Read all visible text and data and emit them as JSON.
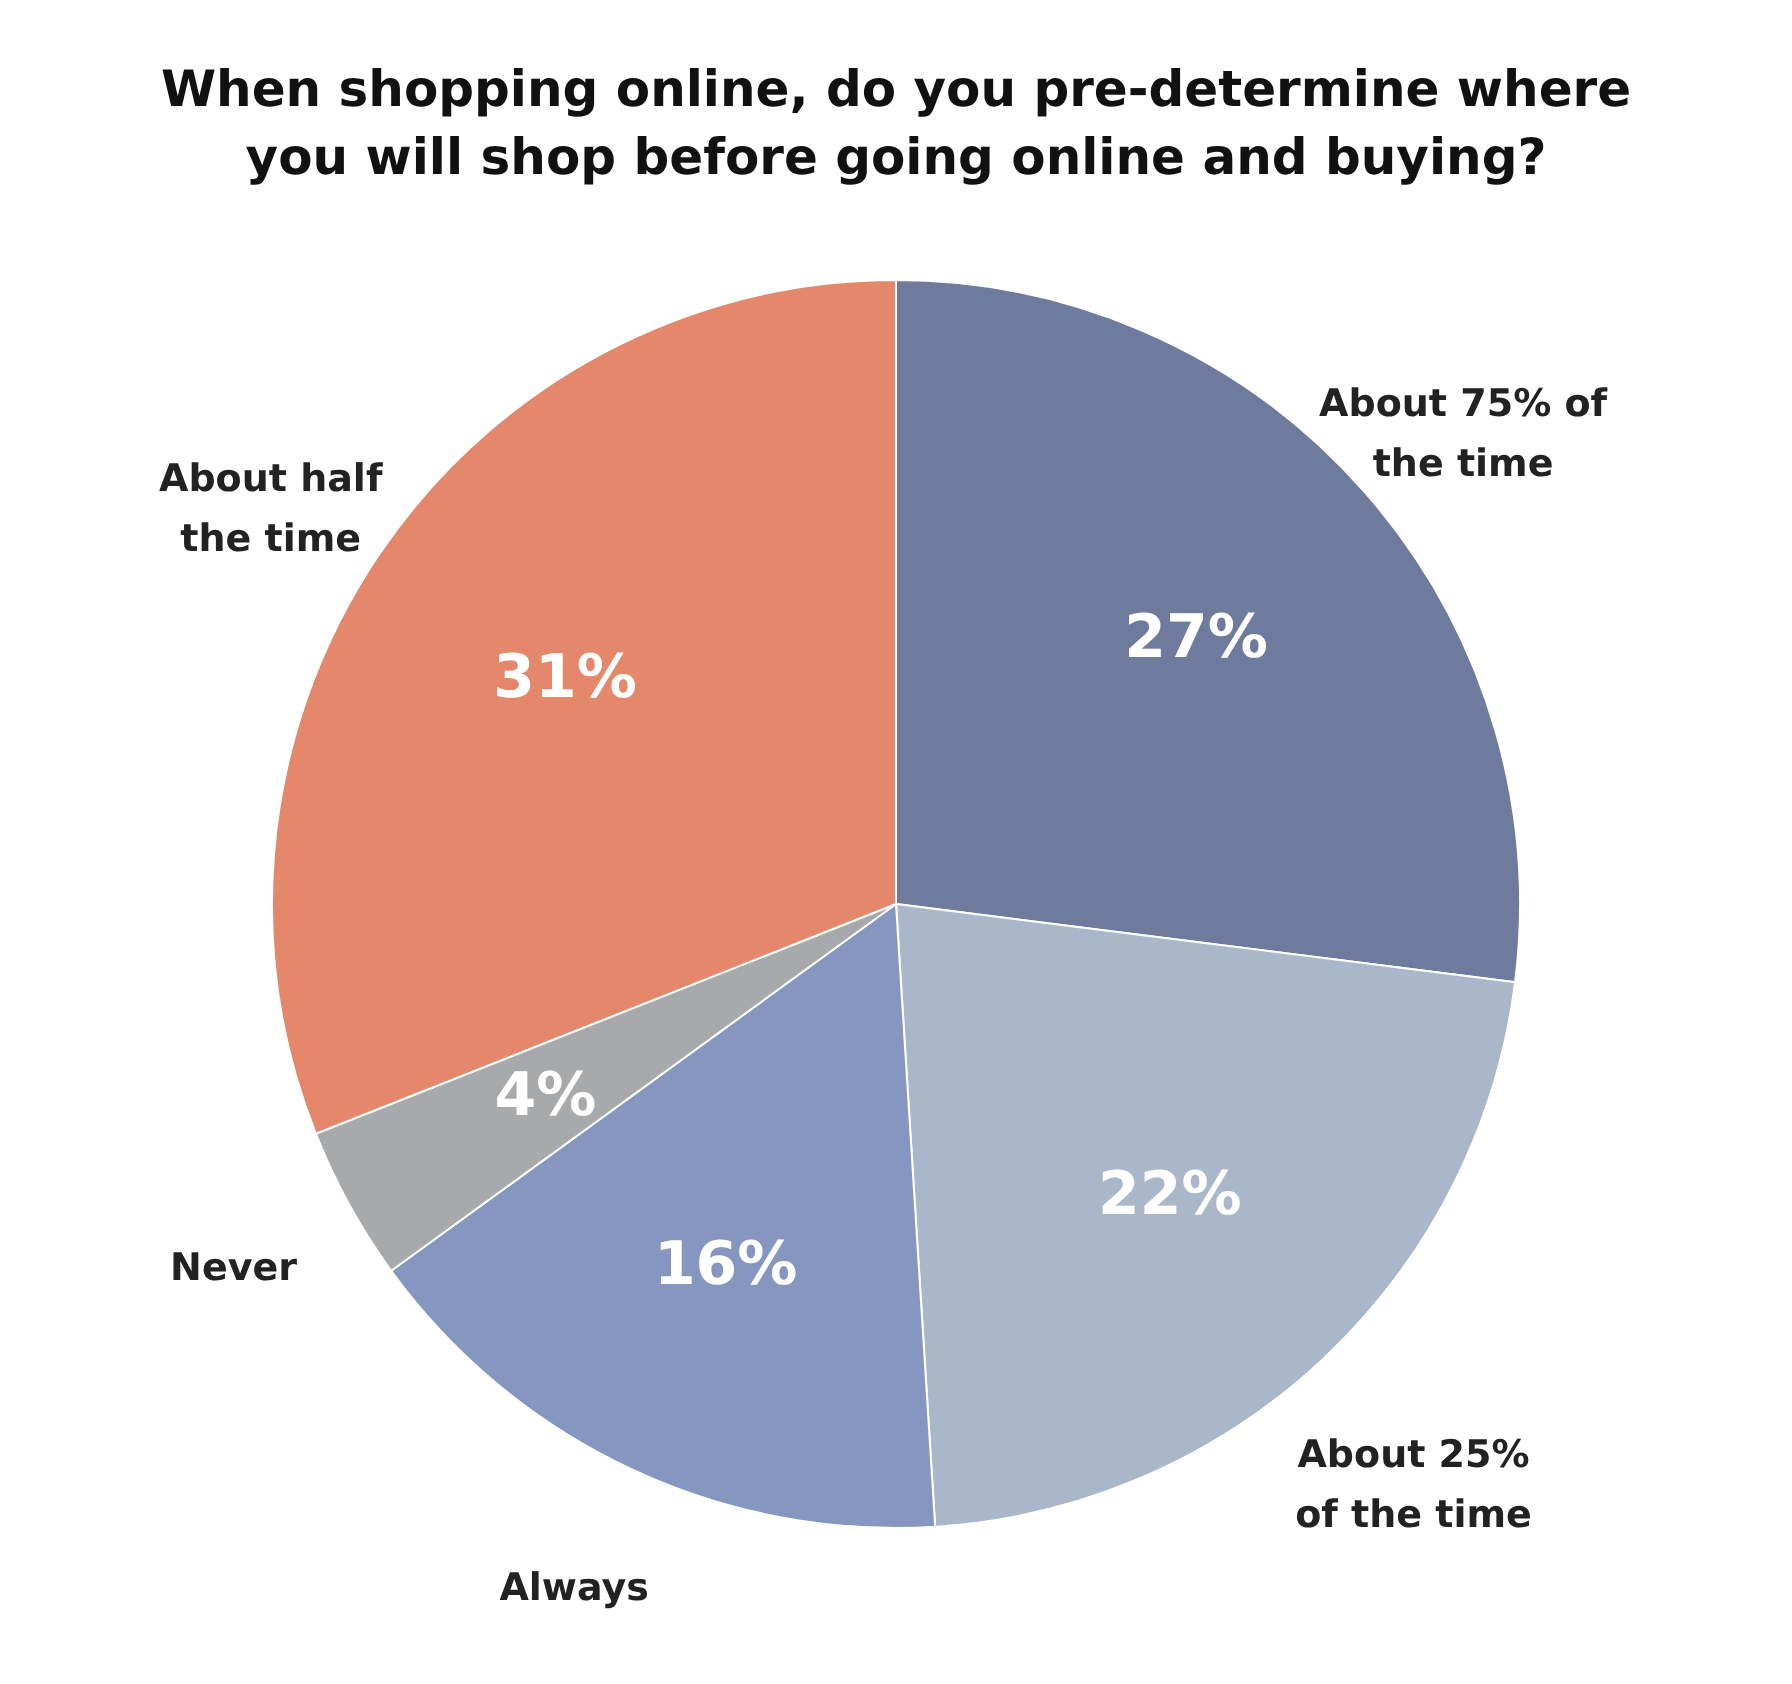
{
  "chart_data": {
    "type": "pie",
    "title": "When shopping online, do you pre-determine where\nyou will shop before going online and buying?",
    "categories": [
      "About 75% of\nthe time",
      "About 25%\nof the time",
      "Always",
      "Never",
      "About half\nthe time"
    ],
    "values": [
      27,
      22,
      16,
      4,
      31
    ],
    "value_labels": [
      "27%",
      "22%",
      "16%",
      "4%",
      "31%"
    ],
    "colors": [
      "#6e7b9c",
      "#aab7cb",
      "#8596c0",
      "#a8a9ab",
      "#e5876a"
    ]
  }
}
